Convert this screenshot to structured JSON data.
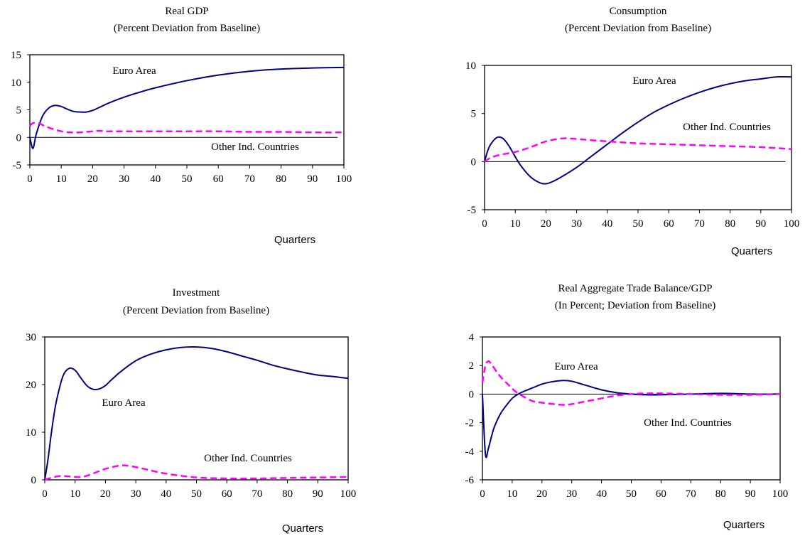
{
  "colors": {
    "euro": "#000080",
    "other": "#ff00ff",
    "axis": "#000000"
  },
  "chart_data": [
    {
      "type": "line",
      "title": "Real GDP",
      "subtitle": "(Percent Deviation from Baseline)",
      "xlabel": "Quarters",
      "ylabel": "",
      "xlim": [
        0,
        100
      ],
      "ylim": [
        -5,
        15
      ],
      "xticks": [
        0,
        10,
        20,
        30,
        40,
        50,
        60,
        70,
        80,
        90,
        100
      ],
      "yticks": [
        -5,
        0,
        5,
        10,
        15
      ],
      "grid": false,
      "series": [
        {
          "name": "Euro Area",
          "style": "solid",
          "x": [
            0,
            1,
            2,
            4,
            6,
            8,
            10,
            12,
            14,
            16,
            18,
            20,
            22,
            25,
            30,
            35,
            40,
            50,
            60,
            70,
            80,
            90,
            100
          ],
          "y": [
            0,
            -2,
            0.5,
            3.8,
            5.3,
            5.8,
            5.6,
            5.1,
            4.7,
            4.6,
            4.6,
            4.9,
            5.4,
            6.2,
            7.3,
            8.2,
            9,
            10.3,
            11.3,
            12,
            12.4,
            12.6,
            12.7
          ]
        },
        {
          "name": "Other Ind. Countries",
          "style": "dashed",
          "x": [
            0,
            1,
            3,
            5,
            8,
            11,
            13,
            16,
            20,
            22,
            25,
            30,
            40,
            50,
            60,
            70,
            80,
            90,
            100
          ],
          "y": [
            2,
            2.6,
            2.5,
            2,
            1.4,
            1,
            0.9,
            0.9,
            1.1,
            1.2,
            1.1,
            1.1,
            1.1,
            1.1,
            1.1,
            1,
            1,
            0.9,
            0.9
          ]
        }
      ],
      "annotations": [
        "Euro Area",
        "Other Ind. Countries"
      ]
    },
    {
      "type": "line",
      "title": "Consumption",
      "subtitle": "(Percent Deviation from Baseline)",
      "xlabel": "Quarters",
      "ylabel": "",
      "xlim": [
        0,
        100
      ],
      "ylim": [
        -5,
        10
      ],
      "xticks": [
        0,
        10,
        20,
        30,
        40,
        50,
        60,
        70,
        80,
        90,
        100
      ],
      "yticks": [
        -5,
        0,
        5,
        10
      ],
      "grid": false,
      "series": [
        {
          "name": "Euro Area",
          "style": "solid",
          "x": [
            0,
            1,
            2,
            4,
            6,
            8,
            10,
            12,
            15,
            18,
            20,
            22,
            25,
            30,
            35,
            40,
            45,
            50,
            55,
            60,
            65,
            70,
            75,
            80,
            85,
            90,
            95,
            100
          ],
          "y": [
            0,
            1.1,
            1.8,
            2.5,
            2.4,
            1.6,
            0.5,
            -0.5,
            -1.6,
            -2.2,
            -2.3,
            -2.1,
            -1.6,
            -0.6,
            0.6,
            1.8,
            3,
            4.1,
            5.1,
            5.9,
            6.6,
            7.2,
            7.7,
            8.1,
            8.4,
            8.6,
            8.8,
            8.8
          ]
        },
        {
          "name": "Other Ind. Countries",
          "style": "dashed",
          "x": [
            0,
            2,
            5,
            10,
            15,
            20,
            25,
            28,
            32,
            40,
            50,
            60,
            70,
            80,
            90,
            100
          ],
          "y": [
            0,
            0.4,
            0.7,
            1,
            1.5,
            2.1,
            2.4,
            2.4,
            2.3,
            2.1,
            1.9,
            1.8,
            1.7,
            1.6,
            1.5,
            1.3
          ]
        }
      ],
      "annotations": [
        "Euro Area",
        "Other Ind. Countries"
      ]
    },
    {
      "type": "line",
      "title": "Investment",
      "subtitle": "(Percent Deviation from Baseline)",
      "xlabel": "Quarters",
      "ylabel": "",
      "xlim": [
        0,
        100
      ],
      "ylim": [
        0,
        30
      ],
      "xticks": [
        0,
        10,
        20,
        30,
        40,
        50,
        60,
        70,
        80,
        90,
        100
      ],
      "yticks": [
        0,
        10,
        20,
        30
      ],
      "grid": false,
      "series": [
        {
          "name": "Euro Area",
          "style": "solid",
          "x": [
            0,
            1,
            2,
            3,
            4,
            6,
            8,
            10,
            12,
            14,
            16,
            18,
            20,
            22,
            25,
            30,
            35,
            40,
            45,
            50,
            55,
            60,
            65,
            70,
            75,
            80,
            85,
            90,
            95,
            100
          ],
          "y": [
            0,
            4,
            9,
            13.5,
            17,
            21.8,
            23.4,
            23,
            21.3,
            19.7,
            19,
            19.1,
            19.8,
            21,
            22.7,
            25,
            26.4,
            27.3,
            27.8,
            27.9,
            27.6,
            26.9,
            26,
            25.1,
            24.1,
            23.3,
            22.6,
            22,
            21.7,
            21.3
          ]
        },
        {
          "name": "Other Ind. Countries",
          "style": "dashed",
          "x": [
            0,
            2,
            5,
            8,
            12,
            15,
            20,
            25,
            28,
            32,
            40,
            50,
            60,
            70,
            80,
            90,
            100
          ],
          "y": [
            0,
            0.4,
            0.8,
            0.7,
            0.6,
            1.1,
            2.3,
            3,
            2.9,
            2.4,
            1.3,
            0.5,
            0.3,
            0.3,
            0.4,
            0.5,
            0.6
          ]
        }
      ],
      "annotations": [
        "Euro Area",
        "Other Ind. Countries"
      ]
    },
    {
      "type": "line",
      "title": "Real Aggregate Trade Balance/GDP",
      "subtitle": "(In Percent; Deviation from Baseline)",
      "xlabel": "Quarters",
      "ylabel": "",
      "xlim": [
        0,
        100
      ],
      "ylim": [
        -6,
        4
      ],
      "xticks": [
        0,
        10,
        20,
        30,
        40,
        50,
        60,
        70,
        80,
        90,
        100
      ],
      "yticks": [
        -6,
        -4,
        -2,
        0,
        2,
        4
      ],
      "grid": false,
      "series": [
        {
          "name": "Euro Area",
          "style": "solid",
          "x": [
            0,
            1,
            2,
            3,
            4,
            6,
            8,
            10,
            12,
            14,
            17,
            20,
            23,
            27,
            30,
            35,
            40,
            45,
            50,
            55,
            60,
            70,
            80,
            90,
            100
          ],
          "y": [
            0,
            -4.2,
            -3.8,
            -3,
            -2.3,
            -1.4,
            -0.8,
            -0.3,
            0,
            0.2,
            0.45,
            0.7,
            0.85,
            0.95,
            0.9,
            0.6,
            0.3,
            0.1,
            0,
            -0.05,
            -0.05,
            0,
            0.05,
            0,
            0
          ]
        },
        {
          "name": "Other Ind. Countries",
          "style": "dashed",
          "x": [
            0,
            1,
            2,
            3,
            5,
            7,
            9,
            11,
            14,
            17,
            20,
            24,
            27,
            30,
            35,
            40,
            45,
            50,
            55,
            60,
            70,
            80,
            90,
            100
          ],
          "y": [
            0.8,
            2,
            2.3,
            2.1,
            1.5,
            1,
            0.6,
            0.2,
            -0.2,
            -0.5,
            -0.6,
            -0.7,
            -0.75,
            -0.7,
            -0.5,
            -0.3,
            -0.1,
            0,
            0.05,
            0.05,
            0,
            -0.05,
            -0.05,
            0
          ]
        }
      ],
      "annotations": [
        "Euro Area",
        "Other Ind. Countries"
      ]
    }
  ]
}
